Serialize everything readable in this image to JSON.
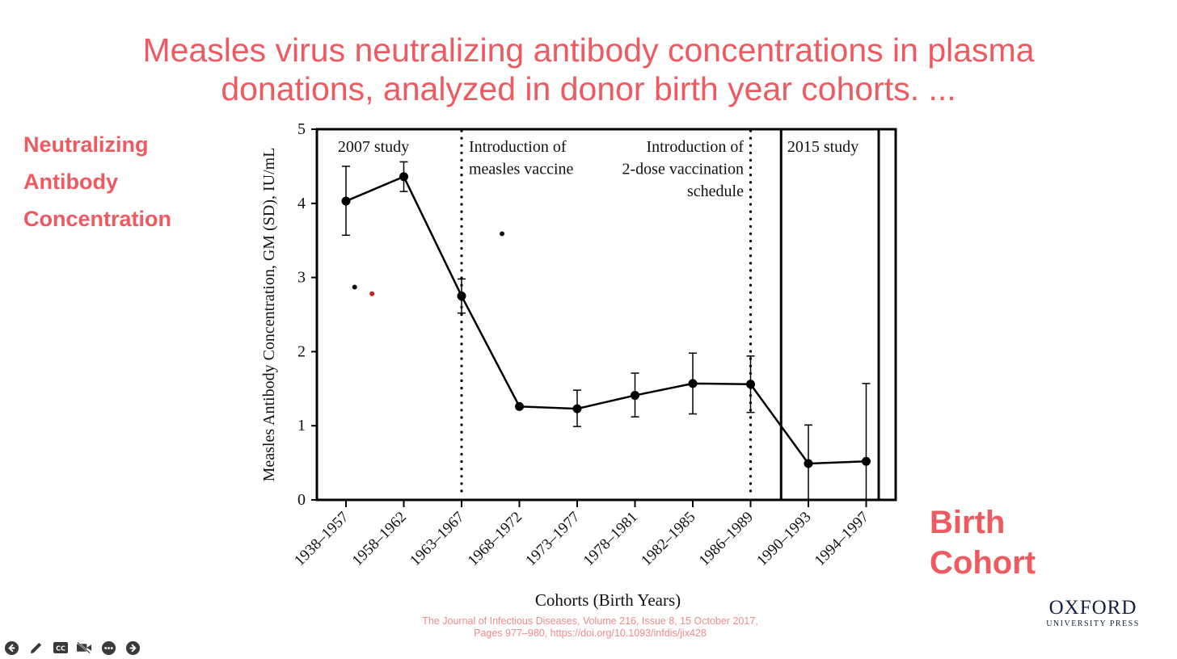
{
  "slide": {
    "title_line1": "Measles virus neutralizing antibody concentrations in plasma",
    "title_line2": "donations, analyzed in donor birth year cohorts. ...",
    "side_label": [
      "Neutralizing",
      "Antibody",
      "Concentration"
    ],
    "birth_label": [
      "Birth",
      "Cohort"
    ],
    "citation_line1": "The Journal of Infectious Diseases, Volume 216, Issue 8, 15 October 2017,",
    "citation_line2": "Pages 977–980, https://doi.org/10.1093/infdis/jix428",
    "logo_line1": "OXFORD",
    "logo_line2": "UNIVERSITY PRESS",
    "accent_color": "#ee5a5f"
  },
  "toolbar": {
    "items": [
      "back-icon",
      "pen-icon",
      "closed-captions-icon",
      "video-off-icon",
      "more-icon",
      "forward-icon"
    ]
  },
  "chart_data": {
    "type": "line",
    "xlabel": "Cohorts (Birth Years)",
    "ylabel": "Measles Antibody Concentration, GM (SD), IU/mL",
    "ylim": [
      0,
      5
    ],
    "yticks": [
      0,
      1,
      2,
      3,
      4,
      5
    ],
    "categories": [
      "1938–1957",
      "1958–1962",
      "1963–1967",
      "1968–1972",
      "1973–1977",
      "1978–1981",
      "1982–1985",
      "1986–1989",
      "1990–1993",
      "1994–1997"
    ],
    "series": [
      {
        "values": [
          4.03,
          4.36,
          2.75,
          1.26,
          1.23,
          1.41,
          1.57,
          1.56,
          0.49,
          0.52
        ],
        "err_low": [
          3.57,
          4.16,
          2.52,
          1.26,
          0.99,
          1.12,
          1.16,
          1.18,
          0.0,
          0.0
        ],
        "err_high": [
          4.5,
          4.56,
          2.98,
          1.26,
          1.48,
          1.71,
          1.98,
          1.94,
          1.01,
          1.57
        ]
      }
    ],
    "annotations": [
      {
        "text": "2007 study",
        "lines": [
          "2007 study"
        ]
      },
      {
        "text": "Introduction of measles vaccine",
        "lines": [
          "Introduction of",
          "measles vaccine"
        ]
      },
      {
        "text": "Introduction of 2-dose vaccination schedule",
        "lines": [
          "Introduction of",
          "2-dose vaccination",
          "schedule"
        ]
      },
      {
        "text": "2015 study",
        "lines": [
          "2015 study"
        ]
      }
    ],
    "vertical_dotted_lines_at": [
      "1963–1967",
      "1986–1989"
    ],
    "stray_points": [
      {
        "x_between": [
          "1938–1957",
          "1958–1962"
        ],
        "y": 2.87,
        "color": "#111111"
      },
      {
        "x_between": [
          "1938–1957",
          "1958–1962"
        ],
        "y": 2.78,
        "color": "#cc1f1f"
      },
      {
        "x_between": [
          "1963–1967",
          "1968–1972"
        ],
        "y": 3.59,
        "color": "#111111"
      }
    ],
    "grid": false
  }
}
